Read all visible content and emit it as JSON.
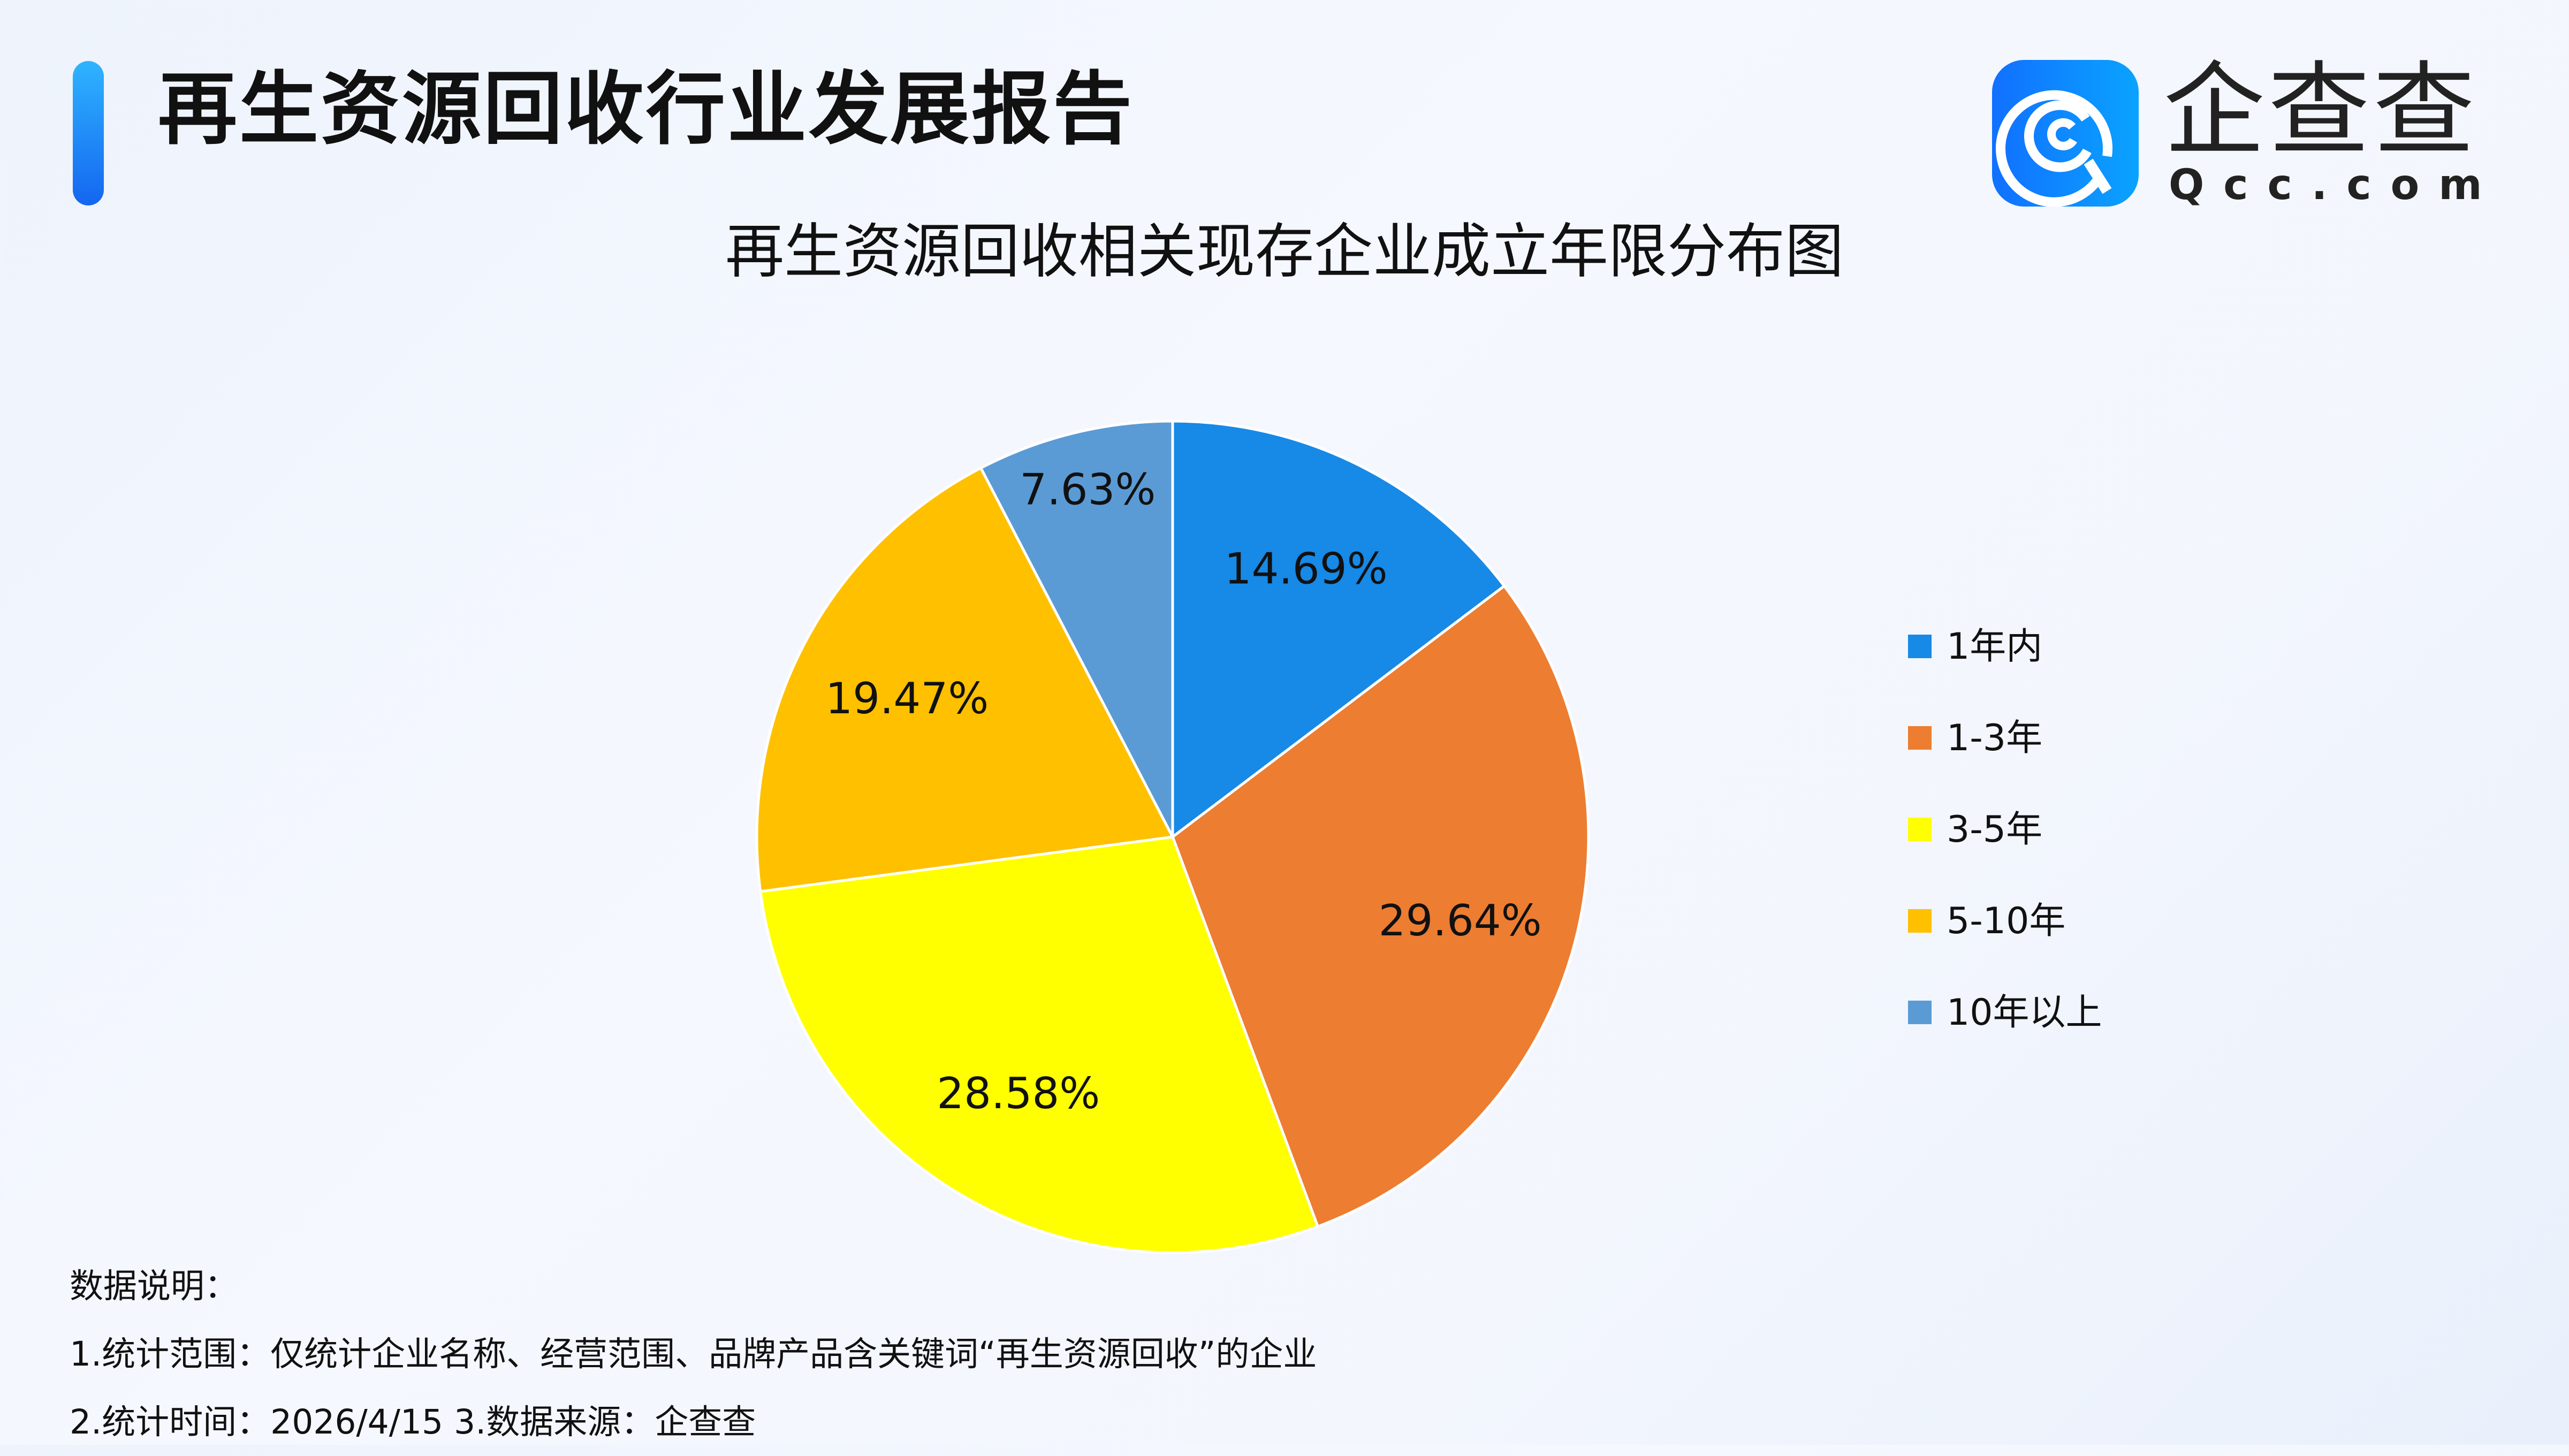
{
  "header": {
    "title": "再生资源回收行业发展报告",
    "logo_cn": "企查查",
    "logo_en": "Qcc.com"
  },
  "chart_data": {
    "type": "pie",
    "title": "再生资源回收相关现存企业成立年限分布图",
    "categories": [
      "1年内",
      "1-3年",
      "3-5年",
      "5-10年",
      "10年以上"
    ],
    "values": [
      14.69,
      29.64,
      28.58,
      19.47,
      7.63
    ],
    "labels": [
      "14.69%",
      "29.64%",
      "28.58%",
      "19.47%",
      "7.63%"
    ],
    "colors": [
      "#1789E6",
      "#ED7D31",
      "#FFFF00",
      "#FFC000",
      "#5B9BD5"
    ],
    "start": "12 o'clock",
    "direction": "clockwise",
    "legend_placement": "right"
  },
  "notes": {
    "heading": "数据说明：",
    "line1": "1.统计范围：仅统计企业名称、经营范围、品牌产品含关键词“再生资源回收”的企业",
    "line2": "2.统计时间：2026/4/15  3.数据来源：企查查"
  }
}
